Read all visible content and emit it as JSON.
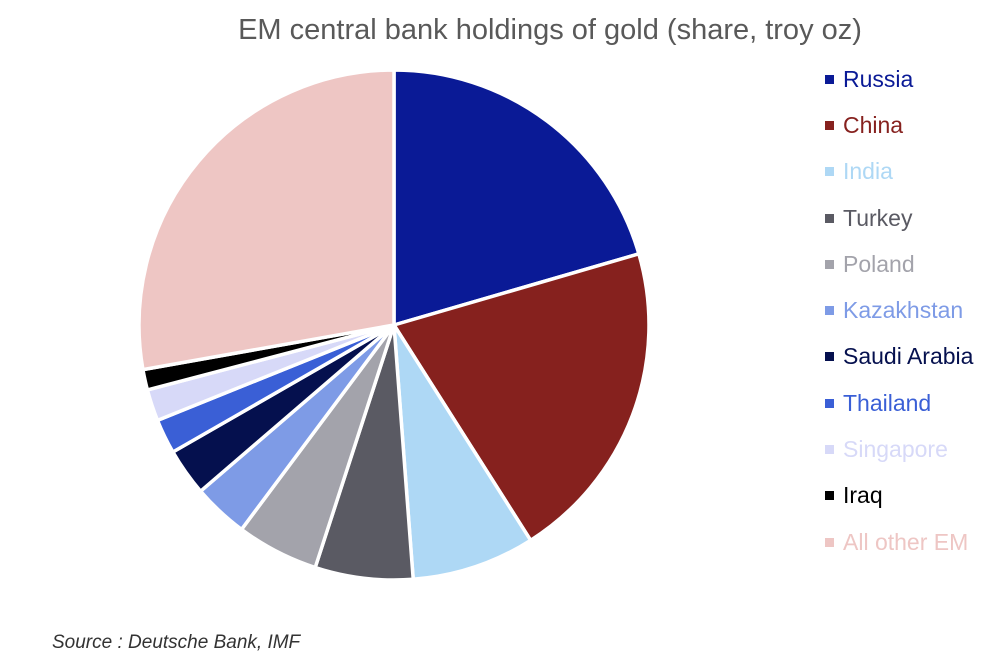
{
  "chart_data": {
    "type": "pie",
    "title": "EM central bank holdings of gold (share, troy oz)",
    "start_angle_deg": 0,
    "direction": "clockwise",
    "legend_position": "right",
    "slices": [
      {
        "label": "Russia",
        "value": 20.5,
        "color": "#0A1A96"
      },
      {
        "label": "China",
        "value": 20.5,
        "color": "#86211E"
      },
      {
        "label": "India",
        "value": 7.8,
        "color": "#AED8F5"
      },
      {
        "label": "Turkey",
        "value": 6.2,
        "color": "#5A5A63"
      },
      {
        "label": "Poland",
        "value": 5.2,
        "color": "#A3A3AB"
      },
      {
        "label": "Kazakhstan",
        "value": 3.5,
        "color": "#7E9BE6"
      },
      {
        "label": "Saudi Arabia",
        "value": 3.0,
        "color": "#05104E"
      },
      {
        "label": "Thailand",
        "value": 2.2,
        "color": "#3A5FD6"
      },
      {
        "label": "Singapore",
        "value": 2.0,
        "color": "#D7D9F8"
      },
      {
        "label": "Iraq",
        "value": 1.3,
        "color": "#000000"
      },
      {
        "label": "All other EM",
        "value": 27.8,
        "color": "#EEC6C4"
      }
    ]
  },
  "footer": {
    "source": "Source : Deutsche Bank, IMF"
  }
}
